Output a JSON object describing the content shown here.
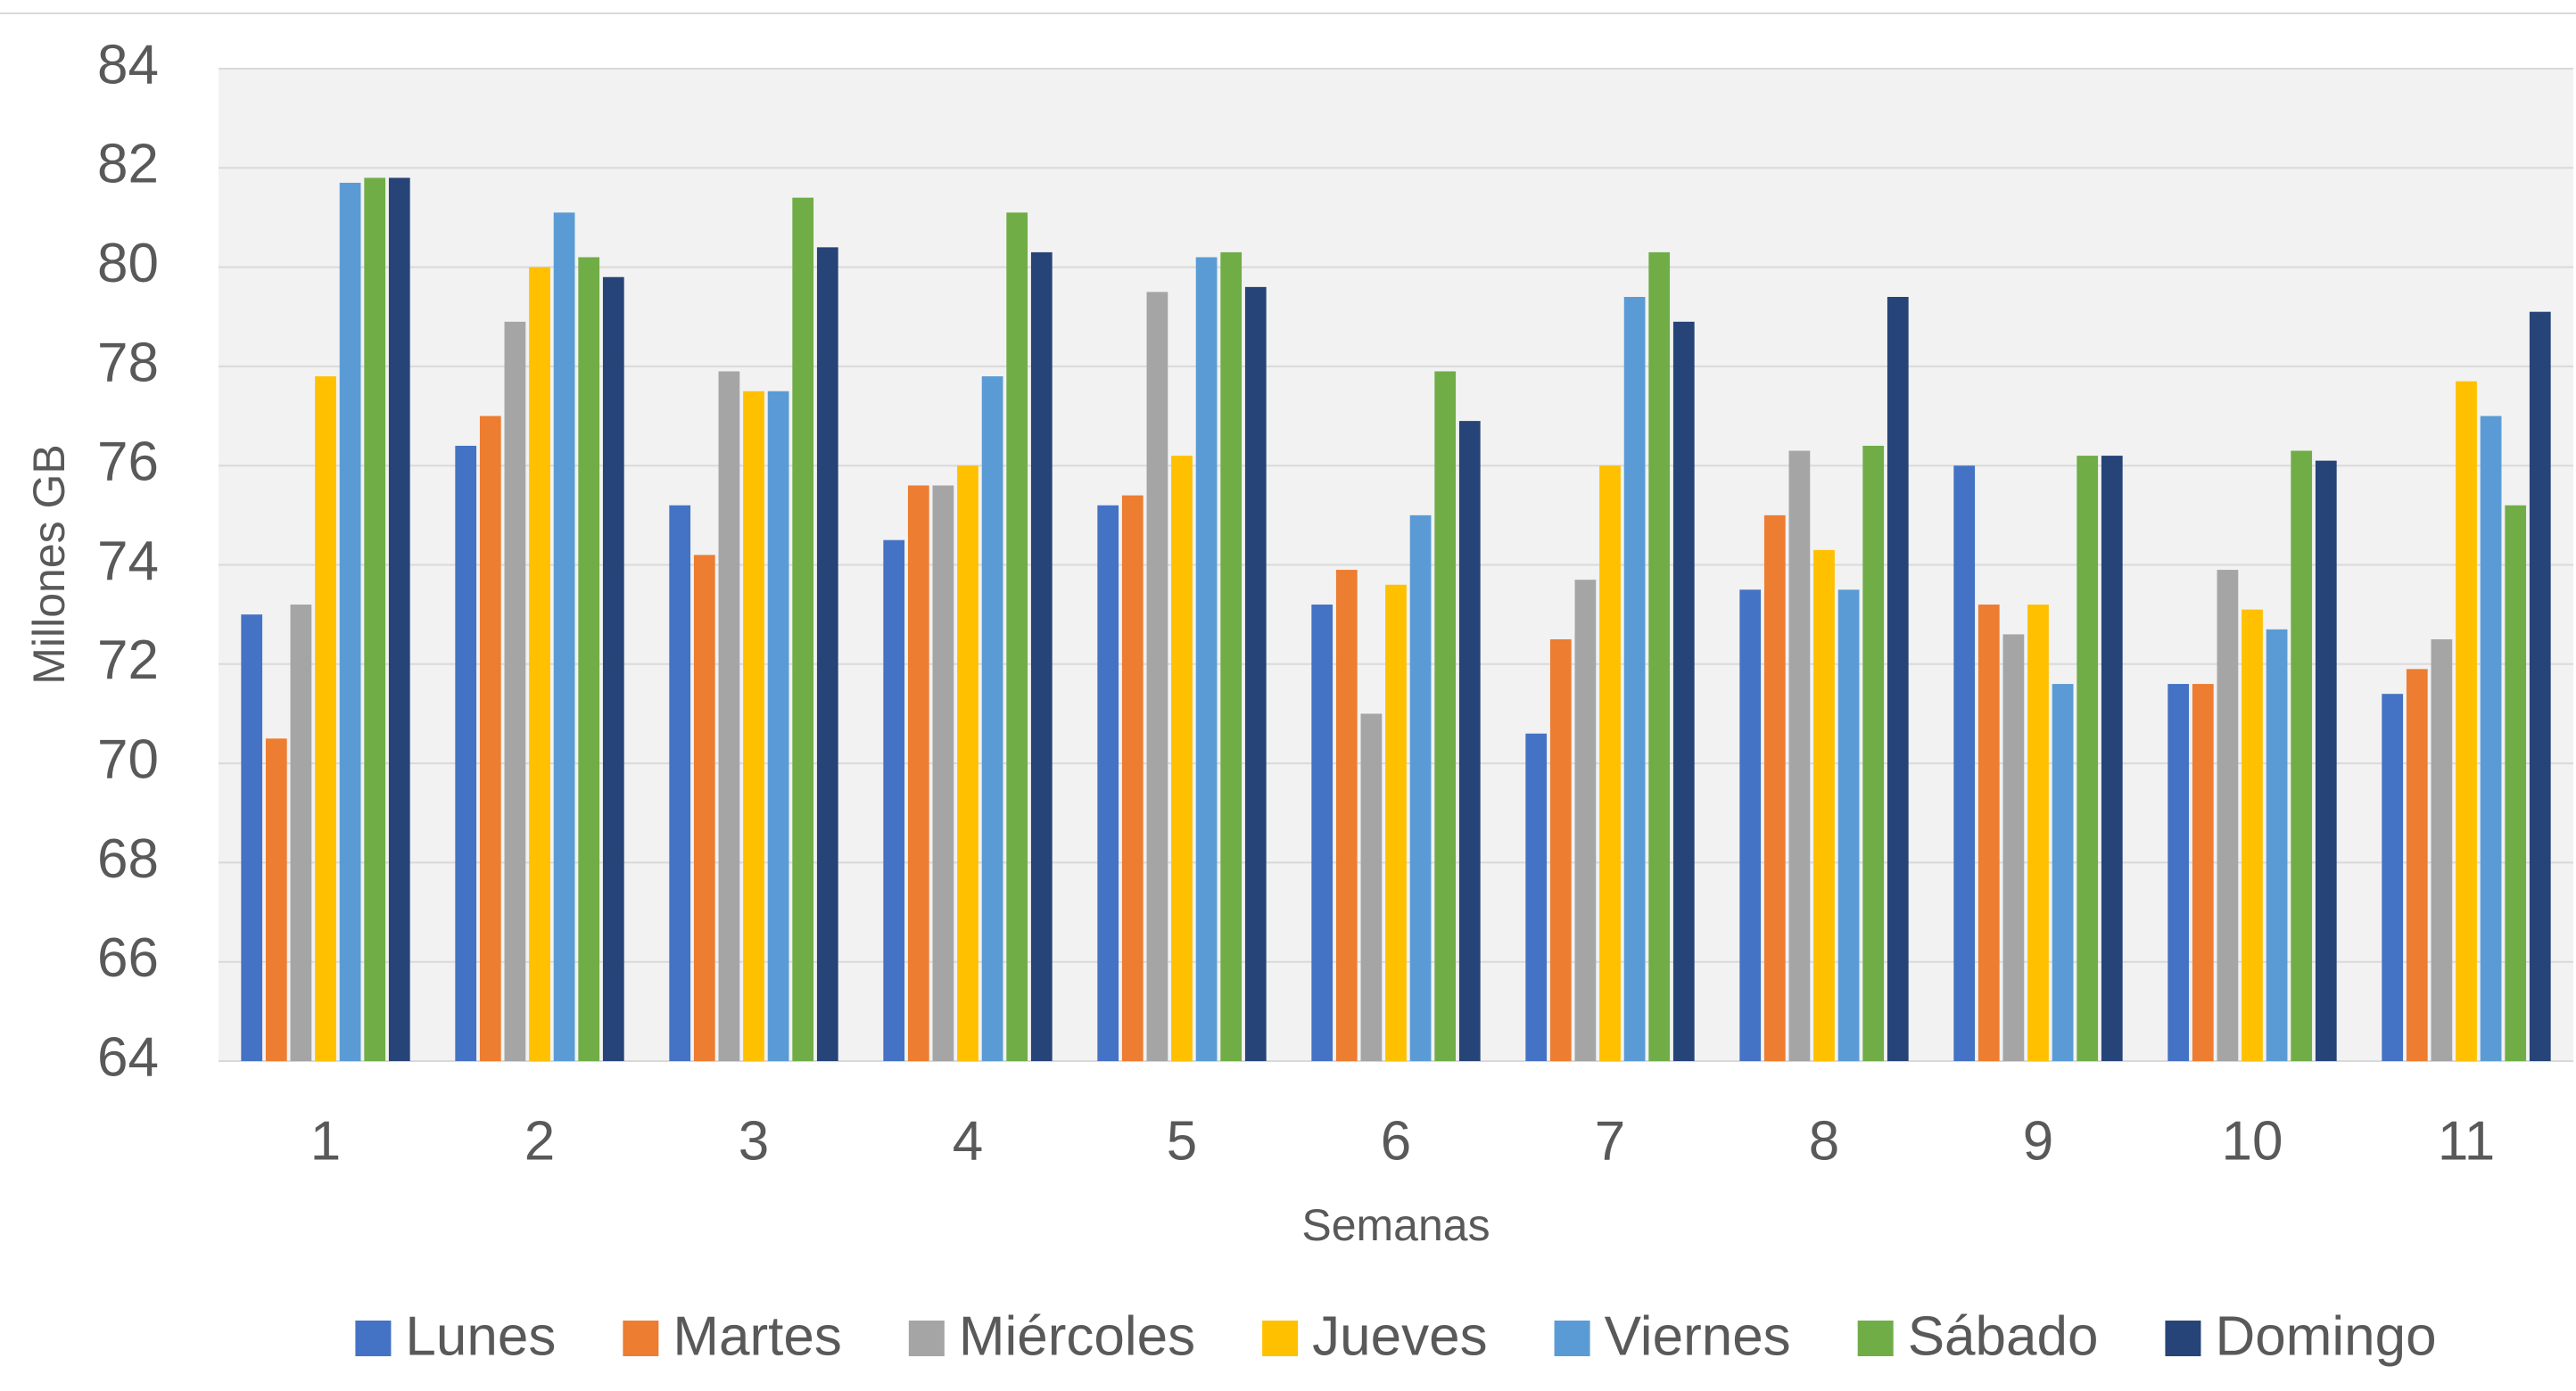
{
  "chart_data": {
    "type": "bar",
    "y_label": "Millones GB",
    "x_label": "Semanas",
    "categories": [
      "1",
      "2",
      "3",
      "4",
      "5",
      "6",
      "7",
      "8",
      "9",
      "10",
      "11"
    ],
    "series": [
      {
        "name": "Lunes",
        "color": "#4472c4",
        "values": [
          73.0,
          76.4,
          75.2,
          74.5,
          75.2,
          73.2,
          70.6,
          73.5,
          76.0,
          71.6,
          71.4
        ]
      },
      {
        "name": "Martes",
        "color": "#ed7d31",
        "values": [
          70.5,
          77.0,
          74.2,
          75.6,
          75.4,
          73.9,
          72.5,
          75.0,
          73.2,
          71.6,
          71.9
        ]
      },
      {
        "name": "Miércoles",
        "color": "#a5a5a5",
        "values": [
          73.2,
          78.9,
          77.9,
          75.6,
          79.5,
          71.0,
          73.7,
          76.3,
          72.6,
          73.9,
          72.5
        ]
      },
      {
        "name": "Jueves",
        "color": "#ffc000",
        "values": [
          77.8,
          80.0,
          77.5,
          76.0,
          76.2,
          73.6,
          76.0,
          74.3,
          73.2,
          73.1,
          77.7
        ]
      },
      {
        "name": "Viernes",
        "color": "#5b9bd5",
        "values": [
          81.7,
          81.1,
          77.5,
          77.8,
          80.2,
          75.0,
          79.4,
          73.5,
          71.6,
          72.7,
          77.0
        ]
      },
      {
        "name": "Sábado",
        "color": "#70ad47",
        "values": [
          81.8,
          80.2,
          81.4,
          81.1,
          80.3,
          77.9,
          80.3,
          76.4,
          76.2,
          76.3,
          75.2
        ]
      },
      {
        "name": "Domingo",
        "color": "#264478",
        "values": [
          81.8,
          79.8,
          80.4,
          80.3,
          79.6,
          76.9,
          78.9,
          79.4,
          76.2,
          76.1,
          79.1
        ]
      }
    ],
    "ylim": [
      64,
      84
    ],
    "yticks": [
      64,
      66,
      68,
      70,
      72,
      74,
      76,
      78,
      80,
      82,
      84
    ],
    "grid": true
  }
}
